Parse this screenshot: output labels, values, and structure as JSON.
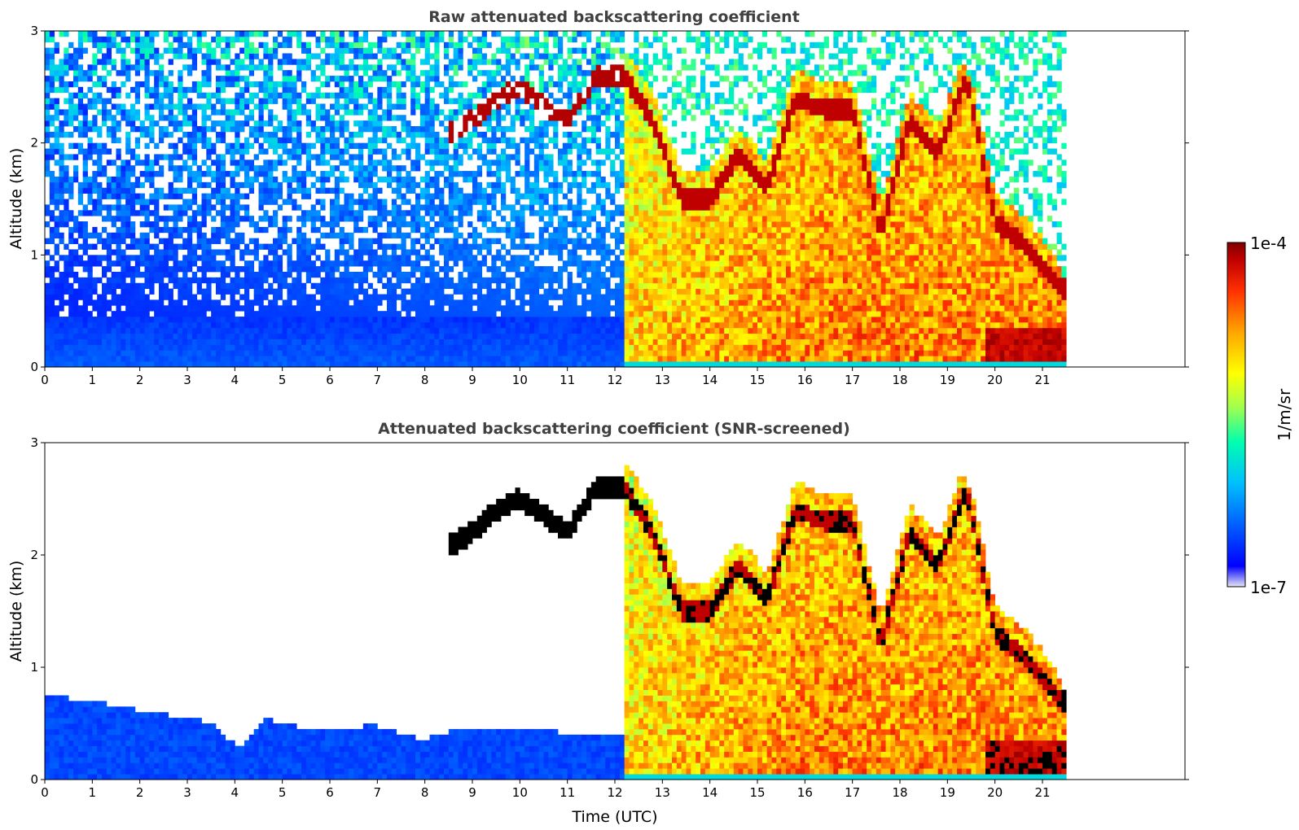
{
  "chart_data": [
    {
      "type": "heatmap",
      "title": "Raw attenuated backscattering coefficient",
      "xlabel": "",
      "ylabel": "Altitude (km)",
      "xlim": [
        0,
        24
      ],
      "ylim": [
        0,
        3
      ],
      "x_ticks": [
        "0",
        "1",
        "2",
        "3",
        "4",
        "5",
        "6",
        "7",
        "8",
        "9",
        "10",
        "11",
        "12",
        "13",
        "14",
        "15",
        "16",
        "17",
        "18",
        "19",
        "20",
        "21"
      ],
      "y_ticks": [
        "0",
        "1",
        "2",
        "3"
      ],
      "data_end_time": 21.5,
      "features": {
        "boundary_layer_top_km": 0.45,
        "aerosol_signal_start_time": 12.2,
        "elevated_layer_times": [
          8.6,
          9.0,
          9.5,
          10.0,
          10.5,
          11.0,
          11.6,
          12.2,
          12.8,
          13.4,
          14.0,
          14.6,
          15.2,
          15.8,
          16.4,
          17.0,
          17.6,
          18.2,
          18.8,
          19.4,
          20.0,
          20.6,
          21.4
        ],
        "elevated_layer_alt_km": [
          2.1,
          2.2,
          2.4,
          2.5,
          2.35,
          2.2,
          2.6,
          2.6,
          2.2,
          1.5,
          1.5,
          1.9,
          1.6,
          2.4,
          2.3,
          2.3,
          1.2,
          2.2,
          1.9,
          2.6,
          1.3,
          1.1,
          0.7
        ]
      }
    },
    {
      "type": "heatmap",
      "title": "Attenuated backscattering coefficient (SNR-screened)",
      "xlabel": "Time (UTC)",
      "ylabel": "Altitude (km)",
      "xlim": [
        0,
        24
      ],
      "ylim": [
        0,
        3
      ],
      "x_ticks": [
        "0",
        "1",
        "2",
        "3",
        "4",
        "5",
        "6",
        "7",
        "8",
        "9",
        "10",
        "11",
        "12",
        "13",
        "14",
        "15",
        "16",
        "17",
        "18",
        "19",
        "20",
        "21"
      ],
      "y_ticks": [
        "0",
        "1",
        "2",
        "3"
      ],
      "data_end_time": 21.5,
      "features": {
        "screened_boundary_layer_km": [
          [
            0,
            0.75
          ],
          [
            1,
            0.7
          ],
          [
            2,
            0.62
          ],
          [
            3,
            0.55
          ],
          [
            3.5,
            0.5
          ],
          [
            4.1,
            0.28
          ],
          [
            4.6,
            0.55
          ],
          [
            5.5,
            0.45
          ],
          [
            7.0,
            0.48
          ],
          [
            8.0,
            0.35
          ],
          [
            8.6,
            0.45
          ],
          [
            10.0,
            0.45
          ],
          [
            11.6,
            0.4
          ]
        ]
      }
    }
  ],
  "colorbar": {
    "label": "1/m/sr",
    "max_label": "1e-4",
    "min_label": "1e-7",
    "scale": "log",
    "range": [
      1e-07,
      0.0001
    ],
    "colormap": [
      "#e6e6f5",
      "#0000ff",
      "#00bfff",
      "#00ffb0",
      "#a0ff50",
      "#ffff00",
      "#ffa500",
      "#ff3000",
      "#c00000",
      "#800000"
    ]
  }
}
